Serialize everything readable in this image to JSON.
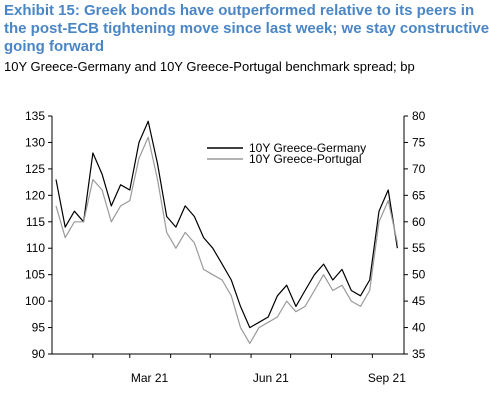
{
  "header": {
    "title_line1": "Exhibit 15: Greek bonds have outperformed relative to its peers in",
    "title_line2": "the post-ECB tightening move since last week; we stay constructive",
    "title_line3": "going forward",
    "subtitle": "10Y Greece-Germany and 10Y Greece-Portugal benchmark spread; bp"
  },
  "chart_data": {
    "type": "line",
    "title": "Exhibit 15: Greek bonds have outperformed relative to its peers in the post-ECB tightening move since last week; we stay constructive going forward",
    "subtitle": "10Y Greece-Germany and 10Y Greece-Portugal benchmark spread; bp",
    "x_tick_labels": [
      "Mar 21",
      "Jun 21",
      "Sep 21"
    ],
    "x": [
      "2021-01-04",
      "2021-01-11",
      "2021-01-18",
      "2021-01-25",
      "2021-02-01",
      "2021-02-08",
      "2021-02-15",
      "2021-02-22",
      "2021-03-01",
      "2021-03-08",
      "2021-03-15",
      "2021-03-22",
      "2021-03-29",
      "2021-04-05",
      "2021-04-12",
      "2021-04-19",
      "2021-04-26",
      "2021-05-03",
      "2021-05-10",
      "2021-05-17",
      "2021-05-24",
      "2021-05-31",
      "2021-06-07",
      "2021-06-14",
      "2021-06-21",
      "2021-06-28",
      "2021-07-05",
      "2021-07-12",
      "2021-07-19",
      "2021-07-26",
      "2021-08-02",
      "2021-08-09",
      "2021-08-16",
      "2021-08-23",
      "2021-08-30",
      "2021-09-06",
      "2021-09-13",
      "2021-09-20"
    ],
    "left_axis": {
      "ylim": [
        90,
        135
      ],
      "ticks": [
        90,
        95,
        100,
        105,
        110,
        115,
        120,
        125,
        130,
        135
      ]
    },
    "right_axis": {
      "ylim": [
        35,
        80
      ],
      "ticks": [
        35,
        40,
        45,
        50,
        55,
        60,
        65,
        70,
        75,
        80
      ]
    },
    "grid": false,
    "legend_position": "top-right",
    "series": [
      {
        "name": "10Y Greece-Germany",
        "axis": "left",
        "color": "#000000",
        "values": [
          123,
          114,
          117,
          115,
          128,
          124,
          118,
          122,
          121,
          130,
          134,
          126,
          116,
          114,
          118,
          116,
          112,
          110,
          107,
          104,
          99,
          95,
          96,
          97,
          101,
          103,
          99,
          102,
          105,
          107,
          104,
          106,
          102,
          101,
          104,
          117,
          121,
          110
        ]
      },
      {
        "name": "10Y Greece-Portugal",
        "axis": "right",
        "color": "#9a9a9a",
        "values": [
          63,
          57,
          60,
          60,
          68,
          66,
          60,
          63,
          64,
          72,
          76,
          68,
          58,
          55,
          58,
          56,
          51,
          50,
          49,
          46,
          40,
          37,
          40,
          41,
          42,
          45,
          43,
          44,
          47,
          50,
          47,
          48,
          45,
          44,
          47,
          60,
          64,
          56
        ]
      }
    ],
    "colors": {
      "title": "#4a86c5",
      "axis": "#000000"
    }
  }
}
